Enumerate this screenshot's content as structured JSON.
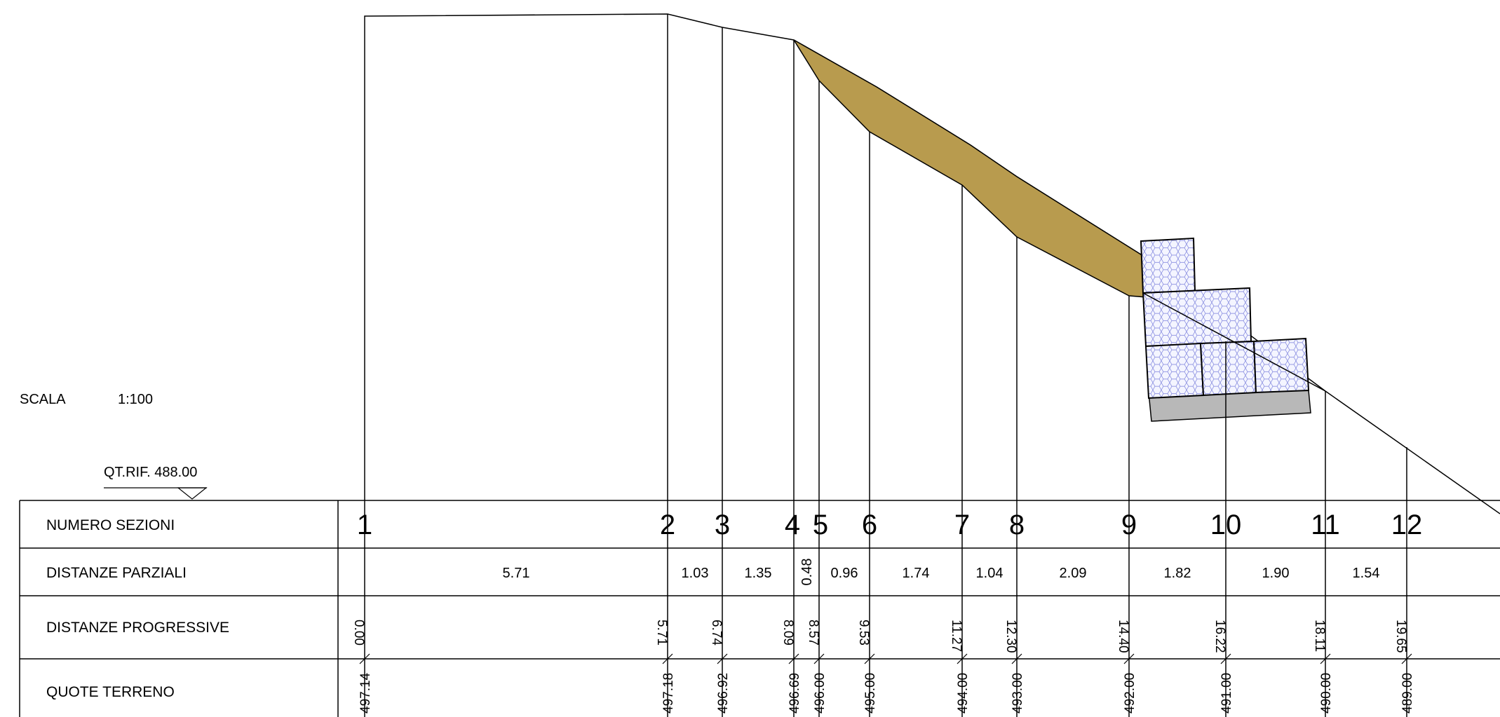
{
  "scale": {
    "label": "SCALA",
    "value": "1:100"
  },
  "reference": {
    "label": "QT.RIF. 488.00"
  },
  "table": {
    "rows": [
      {
        "key": "numero",
        "label": "NUMERO SEZIONI"
      },
      {
        "key": "parziali",
        "label": "DISTANZE PARZIALI"
      },
      {
        "key": "progressive",
        "label": "DISTANZE PROGRESSIVE"
      },
      {
        "key": "quote",
        "label": "QUOTE TERRENO"
      }
    ]
  },
  "sections": [
    {
      "number": "1",
      "progressive": "0.00",
      "quota": "497.14"
    },
    {
      "number": "2",
      "progressive": "5.71",
      "quota": "497.18"
    },
    {
      "number": "3",
      "progressive": "6.74",
      "quota": "496.92"
    },
    {
      "number": "4",
      "progressive": "8.09",
      "quota": "496.69"
    },
    {
      "number": "5",
      "progressive": "8.57",
      "quota": "496.00"
    },
    {
      "number": "6",
      "progressive": "9.53",
      "quota": "495.00"
    },
    {
      "number": "7",
      "progressive": "11.27",
      "quota": "494.00"
    },
    {
      "number": "8",
      "progressive": "12.30",
      "quota": "493.00"
    },
    {
      "number": "9",
      "progressive": "14.40",
      "quota": "492.00"
    },
    {
      "number": "10",
      "progressive": "16.22",
      "quota": "491.00"
    },
    {
      "number": "11",
      "progressive": "18.11",
      "quota": "490.00"
    },
    {
      "number": "12",
      "progressive": "19.65",
      "quota": "489.00"
    }
  ],
  "partial_distances": [
    "5.71",
    "1.03",
    "1.35",
    "0.48",
    "0.96",
    "1.74",
    "1.04",
    "2.09",
    "1.82",
    "1.90",
    "1.54"
  ],
  "colors": {
    "fill_zone": "#b89b4e",
    "gabion_fill": "#f4f5ff",
    "gabion_mesh": "#7a7fdc",
    "foundation": "#b8b8b8",
    "line": "#000000"
  }
}
